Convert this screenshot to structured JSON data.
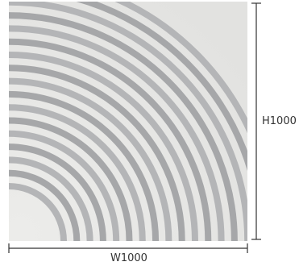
{
  "product": {
    "pattern": "concentric-quarter-arcs",
    "arc_count": 17,
    "colors": {
      "background": "#e6e6e4",
      "groove": "#b4b5b7",
      "groove_edge": "#a6a7a9",
      "dimension_line": "#333333"
    }
  },
  "dimensions": {
    "width_label": "W1000",
    "height_label": "H1000"
  }
}
